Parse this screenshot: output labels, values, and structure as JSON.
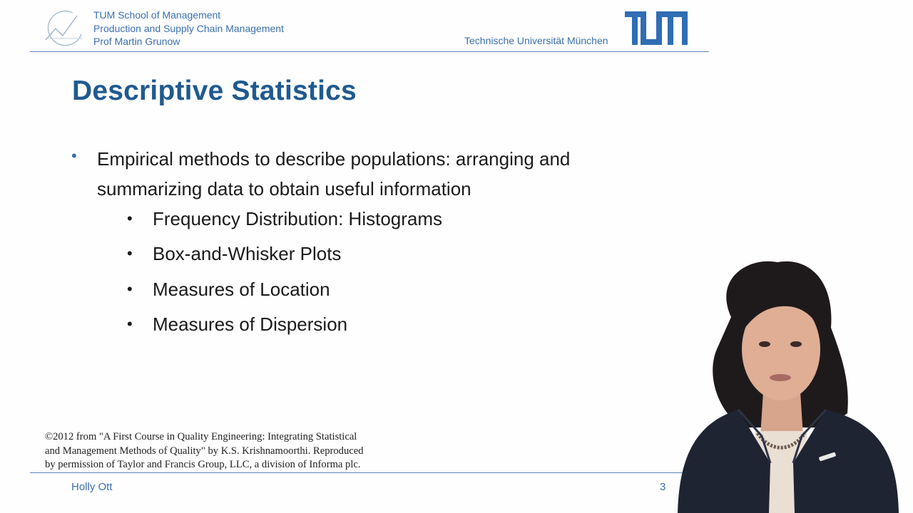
{
  "header": {
    "org_lines": [
      "TUM School of Management",
      "Production and Supply Chain Management",
      "Prof Martin Grunow"
    ],
    "university": "Technische Universität München",
    "logo_text": "TUM"
  },
  "slide": {
    "title": "Descriptive Statistics",
    "main_bullet": "Empirical methods to describe populations: arranging and summarizing data to obtain useful information",
    "sub_bullets": [
      "Frequency Distribution: Histograms",
      "Box-and-Whisker Plots",
      "Measures of Location",
      "Measures of Dispersion"
    ],
    "citation_lines": [
      "©2012 from \"A First Course in Quality Engineering: Integrating Statistical",
      "and Management Methods of Quality\" by K.S. Krishnamoorthi. Reproduced",
      "by permission of Taylor and Francis Group, LLC, a division of Informa plc."
    ]
  },
  "footer": {
    "presenter": "Holly Ott",
    "page_number": "3"
  },
  "colors": {
    "brand_blue": "#3b6fb0",
    "title_blue": "#1f5a8f",
    "text": "#1a1a1a"
  },
  "icons": {
    "chart_logo": "chart-logo-icon",
    "tum_logo": "tum-logo-icon"
  }
}
